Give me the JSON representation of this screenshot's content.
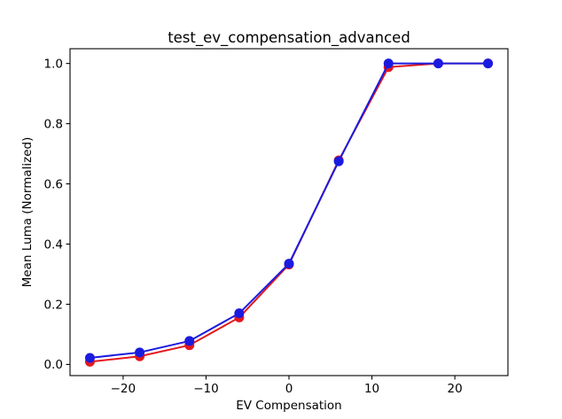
{
  "figure": {
    "background": "#ffffff",
    "frame_color": "#000000"
  },
  "chart_data": {
    "type": "line",
    "title": "test_ev_compensation_advanced",
    "xlabel": "EV Compensation",
    "ylabel": "Mean Luma (Normalized)",
    "x": [
      -24,
      -18,
      -12,
      -6,
      0,
      6,
      12,
      18,
      24
    ],
    "series": [
      {
        "name": "red-series",
        "color": "#e2191e",
        "marker": "circle",
        "values": [
          0.009,
          0.027,
          0.064,
          0.156,
          0.332,
          0.678,
          0.988,
          1.0,
          1.0
        ]
      },
      {
        "name": "blue-series",
        "color": "#1b1be0",
        "marker": "circle",
        "values": [
          0.022,
          0.04,
          0.078,
          0.17,
          0.335,
          0.675,
          1.0,
          1.0,
          1.0
        ]
      }
    ],
    "xlim": [
      -26.4,
      26.4
    ],
    "ylim": [
      -0.037,
      1.049
    ],
    "xticks": {
      "values": [
        -20,
        -10,
        0,
        10,
        20
      ],
      "labels": [
        "−20",
        "−10",
        "0",
        "10",
        "20"
      ]
    },
    "yticks": {
      "values": [
        0.0,
        0.2,
        0.4,
        0.6,
        0.8,
        1.0
      ],
      "labels": [
        "0.0",
        "0.2",
        "0.4",
        "0.6",
        "0.8",
        "1.0"
      ]
    },
    "grid": false,
    "legend": "none"
  }
}
